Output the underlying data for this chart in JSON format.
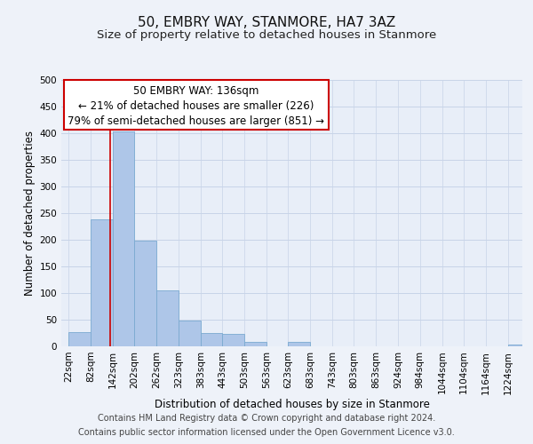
{
  "title": "50, EMBRY WAY, STANMORE, HA7 3AZ",
  "subtitle": "Size of property relative to detached houses in Stanmore",
  "xlabel": "Distribution of detached houses by size in Stanmore",
  "ylabel": "Number of detached properties",
  "bar_edges": [
    22,
    82,
    142,
    202,
    262,
    323,
    383,
    443,
    503,
    563,
    623,
    683,
    743,
    803,
    863,
    924,
    984,
    1044,
    1104,
    1164,
    1224
  ],
  "bar_heights": [
    26,
    238,
    403,
    199,
    105,
    48,
    25,
    24,
    9,
    0,
    9,
    0,
    0,
    0,
    0,
    0,
    0,
    0,
    0,
    0,
    3
  ],
  "bar_color": "#aec6e8",
  "bar_edge_color": "#7aaad0",
  "vline_x": 136,
  "vline_color": "#cc0000",
  "ann_line1": "50 EMBRY WAY: 136sqm",
  "ann_line2": "← 21% of detached houses are smaller (226)",
  "ann_line3": "79% of semi-detached houses are larger (851) →",
  "ylim": [
    0,
    500
  ],
  "yticks": [
    0,
    50,
    100,
    150,
    200,
    250,
    300,
    350,
    400,
    450,
    500
  ],
  "tick_labels": [
    "22sqm",
    "82sqm",
    "142sqm",
    "202sqm",
    "262sqm",
    "323sqm",
    "383sqm",
    "443sqm",
    "503sqm",
    "563sqm",
    "623sqm",
    "683sqm",
    "743sqm",
    "803sqm",
    "863sqm",
    "924sqm",
    "984sqm",
    "1044sqm",
    "1104sqm",
    "1164sqm",
    "1224sqm"
  ],
  "footer_line1": "Contains HM Land Registry data © Crown copyright and database right 2024.",
  "footer_line2": "Contains public sector information licensed under the Open Government Licence v3.0.",
  "background_color": "#eef2f9",
  "plot_bg_color": "#e8eef8",
  "grid_color": "#c8d4e8",
  "title_fontsize": 11,
  "subtitle_fontsize": 9.5,
  "axis_label_fontsize": 8.5,
  "tick_fontsize": 7.5,
  "footer_fontsize": 7,
  "annotation_fontsize": 8.5
}
